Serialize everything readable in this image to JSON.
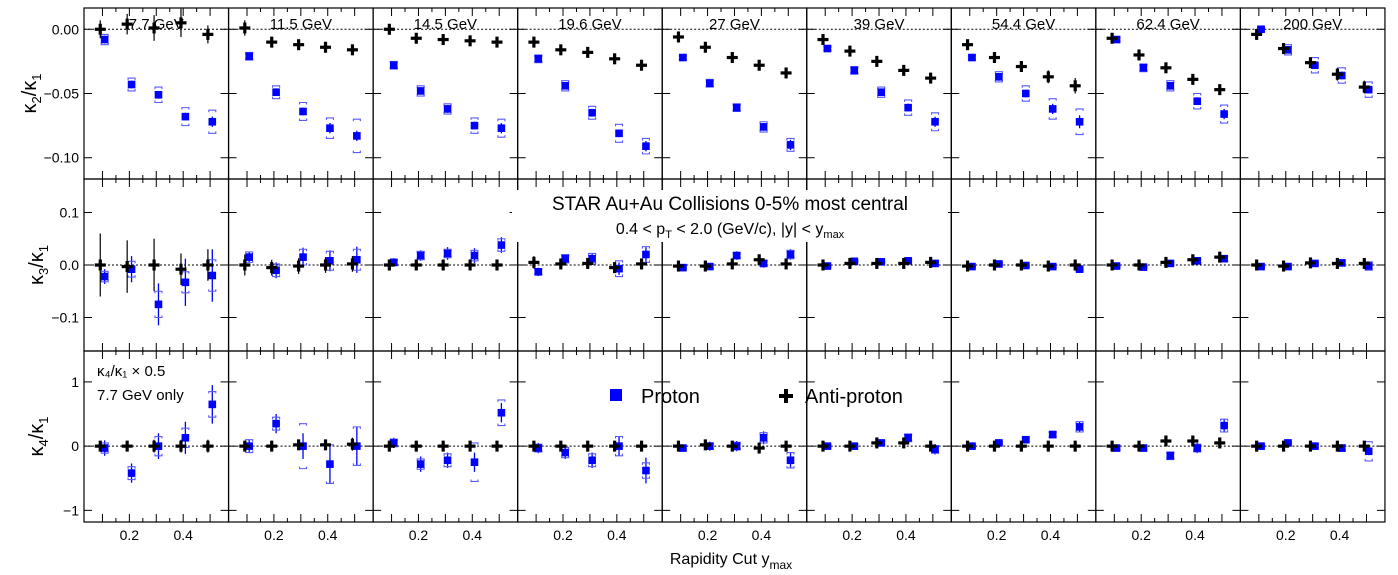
{
  "chart_data": {
    "type": "scatter",
    "title": "STAR Au+Au Collisions 0-5% most central",
    "subtitle": {
      "pre": "0.4 < p",
      "sub1": "T",
      "mid": " < 2.0 (GeV/c), |y| < y",
      "sub2": "max"
    },
    "xlabel": {
      "main": "Rapidity Cut y",
      "sub": "max"
    },
    "energies": [
      "7.7 GeV",
      "11.5 GeV",
      "14.5 GeV",
      "19.6 GeV",
      "27 GeV",
      "39 GeV",
      "54.4 GeV",
      "62.4 GeV",
      "200 GeV"
    ],
    "x": [
      0.1,
      0.2,
      0.3,
      0.4,
      0.5
    ],
    "xlim": [
      0.05,
      0.55
    ],
    "xticks": [
      "0.2",
      "0.4"
    ],
    "legend": {
      "proton": "Proton",
      "antiproton": "Anti-proton",
      "placement": "lower row, center"
    },
    "colors": {
      "proton": "#0000ff",
      "antiproton": "#000000",
      "systematic": "#5a5aff"
    },
    "note": {
      "line1": "κ₄/κ₁ × 0.5",
      "line2": "7.7 GeV only"
    },
    "rows": [
      {
        "key": "k2",
        "ylabel": {
          "main": "κ",
          "sub1": "2",
          "slash": "/κ",
          "sub2": "1"
        },
        "ylim": [
          -0.115,
          0.015
        ],
        "yticks": [
          {
            "v": 0,
            "t": "0.00"
          },
          {
            "v": -0.05,
            "t": "−0.05"
          },
          {
            "v": -0.1,
            "t": "−0.10"
          }
        ],
        "proton": [
          [
            -0.008,
            -0.043,
            -0.051,
            -0.068,
            -0.072
          ],
          [
            -0.021,
            -0.049,
            -0.064,
            -0.077,
            -0.083
          ],
          [
            -0.028,
            -0.048,
            -0.062,
            -0.075,
            -0.077
          ],
          [
            -0.023,
            -0.044,
            -0.065,
            -0.081,
            -0.091
          ],
          [
            -0.022,
            -0.042,
            -0.061,
            -0.076,
            -0.09
          ],
          [
            -0.015,
            -0.032,
            -0.049,
            -0.061,
            -0.072
          ],
          [
            -0.022,
            -0.037,
            -0.05,
            -0.062,
            -0.072
          ],
          [
            -0.008,
            -0.03,
            -0.044,
            -0.056,
            -0.066
          ],
          [
            0.0,
            -0.016,
            -0.028,
            -0.036,
            -0.047
          ]
        ],
        "proton_err": [
          [
            0.003,
            0.003,
            0.003,
            0.003,
            0.004
          ],
          [
            0.002,
            0.003,
            0.003,
            0.004,
            0.004
          ],
          [
            0.002,
            0.002,
            0.003,
            0.003,
            0.004
          ],
          [
            0.002,
            0.002,
            0.003,
            0.003,
            0.004
          ],
          [
            0.002,
            0.002,
            0.002,
            0.003,
            0.004
          ],
          [
            0.002,
            0.002,
            0.003,
            0.003,
            0.004
          ],
          [
            0.002,
            0.003,
            0.003,
            0.004,
            0.005
          ],
          [
            0.002,
            0.002,
            0.003,
            0.003,
            0.004
          ],
          [
            0.002,
            0.002,
            0.002,
            0.003,
            0.003
          ]
        ],
        "proton_sys": [
          [
            0.004,
            0.005,
            0.006,
            0.007,
            0.009
          ],
          [
            0.003,
            0.005,
            0.007,
            0.008,
            0.013
          ],
          [
            0.003,
            0.004,
            0.004,
            0.006,
            0.007
          ],
          [
            0.003,
            0.004,
            0.005,
            0.007,
            0.006
          ],
          [
            0.002,
            0.003,
            0.003,
            0.004,
            0.005
          ],
          [
            0.002,
            0.003,
            0.004,
            0.006,
            0.007
          ],
          [
            0.002,
            0.004,
            0.006,
            0.008,
            0.01
          ],
          [
            0.002,
            0.003,
            0.004,
            0.006,
            0.007
          ],
          [
            0.002,
            0.004,
            0.006,
            0.006,
            0.006
          ]
        ],
        "anti": [
          [
            0.0,
            0.004,
            0.001,
            0.005,
            -0.004
          ],
          [
            0.001,
            -0.01,
            -0.012,
            -0.014,
            -0.016
          ],
          [
            0.0,
            -0.007,
            -0.008,
            -0.009,
            -0.01
          ],
          [
            -0.01,
            -0.016,
            -0.018,
            -0.023,
            -0.028
          ],
          [
            -0.006,
            -0.014,
            -0.022,
            -0.028,
            -0.034
          ],
          [
            -0.008,
            -0.017,
            -0.025,
            -0.032,
            -0.038
          ],
          [
            -0.012,
            -0.022,
            -0.029,
            -0.037,
            -0.044
          ],
          [
            -0.007,
            -0.02,
            -0.03,
            -0.039,
            -0.047
          ],
          [
            -0.004,
            -0.015,
            -0.026,
            -0.035,
            -0.045
          ]
        ],
        "anti_err": [
          [
            0.007,
            0.008,
            0.01,
            0.011,
            0.007
          ],
          [
            0.006,
            0.003,
            0.003,
            0.003,
            0.003
          ],
          [
            0.003,
            0.002,
            0.002,
            0.002,
            0.002
          ],
          [
            0.003,
            0.003,
            0.003,
            0.003,
            0.003
          ],
          [
            0.003,
            0.003,
            0.003,
            0.003,
            0.003
          ],
          [
            0.003,
            0.003,
            0.003,
            0.003,
            0.003
          ],
          [
            0.003,
            0.003,
            0.003,
            0.005,
            0.006
          ],
          [
            0.002,
            0.003,
            0.003,
            0.003,
            0.004
          ],
          [
            0.002,
            0.003,
            0.004,
            0.005,
            0.005
          ]
        ]
      },
      {
        "key": "k3",
        "ylabel": {
          "main": "κ",
          "sub1": "3",
          "slash": "/κ",
          "sub2": "1"
        },
        "ylim": [
          -0.16,
          0.16
        ],
        "yticks": [
          {
            "v": 0.1,
            "t": "0.1"
          },
          {
            "v": 0,
            "t": "0.0"
          },
          {
            "v": -0.1,
            "t": "−0.1"
          }
        ],
        "proton": [
          [
            -0.022,
            -0.008,
            -0.075,
            -0.033,
            -0.02
          ],
          [
            0.015,
            -0.01,
            0.015,
            0.008,
            0.01
          ],
          [
            0.005,
            0.018,
            0.022,
            0.018,
            0.038
          ],
          [
            -0.013,
            0.012,
            0.012,
            -0.007,
            0.02
          ],
          [
            -0.005,
            -0.003,
            0.018,
            0.003,
            0.02
          ],
          [
            -0.002,
            0.007,
            0.006,
            0.008,
            0.003
          ],
          [
            -0.003,
            0.002,
            -0.001,
            -0.003,
            -0.008
          ],
          [
            -0.002,
            -0.004,
            0.003,
            0.008,
            0.012
          ],
          [
            -0.003,
            -0.003,
            0.003,
            0.004,
            -0.002
          ]
        ],
        "proton_err": [
          [
            0.014,
            0.025,
            0.04,
            0.045,
            0.05
          ],
          [
            0.01,
            0.015,
            0.018,
            0.02,
            0.025
          ],
          [
            0.008,
            0.01,
            0.012,
            0.014,
            0.015
          ],
          [
            0.008,
            0.009,
            0.01,
            0.012,
            0.014
          ],
          [
            0.006,
            0.006,
            0.008,
            0.008,
            0.01
          ],
          [
            0.005,
            0.005,
            0.005,
            0.006,
            0.006
          ],
          [
            0.004,
            0.004,
            0.005,
            0.005,
            0.006
          ],
          [
            0.004,
            0.005,
            0.005,
            0.006,
            0.007
          ],
          [
            0.004,
            0.004,
            0.004,
            0.005,
            0.005
          ]
        ],
        "proton_sys": [
          [
            0.01,
            0.015,
            0.025,
            0.02,
            0.03
          ],
          [
            0.01,
            0.012,
            0.015,
            0.018,
            0.02
          ],
          [
            0.006,
            0.008,
            0.008,
            0.01,
            0.012
          ],
          [
            0.006,
            0.008,
            0.01,
            0.015,
            0.015
          ],
          [
            0.004,
            0.005,
            0.006,
            0.006,
            0.008
          ],
          [
            0.003,
            0.003,
            0.004,
            0.004,
            0.005
          ],
          [
            0.003,
            0.003,
            0.003,
            0.004,
            0.004
          ],
          [
            0.003,
            0.003,
            0.004,
            0.005,
            0.006
          ],
          [
            0.003,
            0.003,
            0.004,
            0.005,
            0.008
          ]
        ],
        "anti": [
          [
            0.0,
            -0.003,
            0.0,
            -0.008,
            0.0
          ],
          [
            0.0,
            -0.005,
            -0.002,
            0.0,
            0.002
          ],
          [
            0.0,
            0.0,
            0.0,
            0.0,
            0.0
          ],
          [
            0.005,
            0.002,
            0.003,
            -0.005,
            0.002
          ],
          [
            -0.002,
            -0.002,
            0.002,
            0.01,
            0.002
          ],
          [
            0.0,
            0.003,
            0.003,
            0.003,
            0.005
          ],
          [
            -0.002,
            0.0,
            0.0,
            -0.002,
            0.0
          ],
          [
            0.0,
            0.0,
            0.005,
            0.01,
            0.015
          ],
          [
            0.0,
            -0.002,
            0.004,
            0.003,
            0.003
          ]
        ],
        "anti_err": [
          [
            0.06,
            0.05,
            0.05,
            0.03,
            0.03
          ],
          [
            0.02,
            0.015,
            0.015,
            0.015,
            0.015
          ],
          [
            0.005,
            0.005,
            0.005,
            0.005,
            0.005
          ],
          [
            0.012,
            0.01,
            0.01,
            0.01,
            0.01
          ],
          [
            0.005,
            0.005,
            0.005,
            0.008,
            0.005
          ],
          [
            0.003,
            0.003,
            0.003,
            0.003,
            0.005
          ],
          [
            0.004,
            0.004,
            0.004,
            0.005,
            0.01
          ],
          [
            0.005,
            0.005,
            0.005,
            0.006,
            0.008
          ],
          [
            0.004,
            0.004,
            0.005,
            0.006,
            0.008
          ]
        ]
      },
      {
        "key": "k4",
        "ylabel": {
          "main": "κ",
          "sub1": "4",
          "slash": "/κ",
          "sub2": "1"
        },
        "ylim": [
          -1.15,
          1.45
        ],
        "yticks": [
          {
            "v": 1,
            "t": "1"
          },
          {
            "v": 0,
            "t": "0"
          },
          {
            "v": -1,
            "t": "−1"
          }
        ],
        "proton": [
          [
            -0.03,
            -0.42,
            0.0,
            0.13,
            0.65
          ],
          [
            0.0,
            0.35,
            0.0,
            -0.28,
            0.0
          ],
          [
            0.05,
            -0.28,
            -0.22,
            -0.25,
            0.52
          ],
          [
            -0.03,
            -0.1,
            -0.22,
            0.0,
            -0.38
          ],
          [
            -0.03,
            0.0,
            0.0,
            0.13,
            -0.22
          ],
          [
            0.0,
            0.0,
            0.05,
            0.13,
            -0.05
          ],
          [
            0.0,
            0.05,
            0.1,
            0.18,
            0.3
          ],
          [
            -0.03,
            -0.03,
            -0.15,
            -0.03,
            0.32
          ],
          [
            0.0,
            0.05,
            0.0,
            -0.03,
            -0.08
          ]
        ],
        "proton_err": [
          [
            0.12,
            0.15,
            0.2,
            0.25,
            0.3
          ],
          [
            0.1,
            0.15,
            0.2,
            0.3,
            0.3
          ],
          [
            0.08,
            0.12,
            0.12,
            0.15,
            0.15
          ],
          [
            0.08,
            0.1,
            0.12,
            0.15,
            0.2
          ],
          [
            0.05,
            0.07,
            0.08,
            0.1,
            0.12
          ],
          [
            0.04,
            0.04,
            0.05,
            0.06,
            0.08
          ],
          [
            0.03,
            0.03,
            0.04,
            0.05,
            0.08
          ],
          [
            0.05,
            0.05,
            0.06,
            0.08,
            0.1
          ],
          [
            0.03,
            0.04,
            0.05,
            0.05,
            0.06
          ]
        ],
        "proton_sys": [
          [
            0.08,
            0.1,
            0.15,
            0.15,
            0.2
          ],
          [
            0.1,
            0.1,
            0.35,
            0.3,
            0.3
          ],
          [
            0.06,
            0.08,
            0.1,
            0.3,
            0.2
          ],
          [
            0.06,
            0.08,
            0.1,
            0.15,
            0.12
          ],
          [
            0.04,
            0.05,
            0.06,
            0.08,
            0.12
          ],
          [
            0.03,
            0.03,
            0.04,
            0.06,
            0.06
          ],
          [
            0.03,
            0.03,
            0.04,
            0.05,
            0.08
          ],
          [
            0.04,
            0.04,
            0.06,
            0.06,
            0.1
          ],
          [
            0.03,
            0.03,
            0.04,
            0.05,
            0.15
          ]
        ],
        "anti": [
          [
            0.0,
            0.0,
            0.0,
            0.0,
            0.0
          ],
          [
            0.0,
            0.0,
            0.02,
            0.02,
            0.03
          ],
          [
            0.0,
            0.0,
            0.0,
            0.0,
            0.0
          ],
          [
            0.0,
            0.0,
            0.0,
            0.0,
            0.0
          ],
          [
            0.0,
            0.02,
            0.0,
            -0.03,
            0.0
          ],
          [
            0.0,
            0.0,
            0.05,
            0.05,
            0.0
          ],
          [
            0.0,
            0.0,
            0.0,
            0.0,
            0.0
          ],
          [
            0.0,
            0.0,
            0.08,
            0.08,
            0.05
          ],
          [
            0.0,
            0.0,
            0.0,
            0.0,
            0.0
          ]
        ],
        "anti_err": [
          [
            0.08,
            0.05,
            0.1,
            0.1,
            0.1
          ],
          [
            0.05,
            0.05,
            0.08,
            0.08,
            0.1
          ],
          [
            0.03,
            0.03,
            0.03,
            0.04,
            0.05
          ],
          [
            0.05,
            0.05,
            0.05,
            0.06,
            0.08
          ],
          [
            0.03,
            0.03,
            0.04,
            0.05,
            0.05
          ],
          [
            0.02,
            0.02,
            0.03,
            0.04,
            0.04
          ],
          [
            0.02,
            0.02,
            0.03,
            0.03,
            0.04
          ],
          [
            0.03,
            0.04,
            0.05,
            0.05,
            0.06
          ],
          [
            0.02,
            0.03,
            0.03,
            0.04,
            0.05
          ]
        ]
      }
    ]
  }
}
